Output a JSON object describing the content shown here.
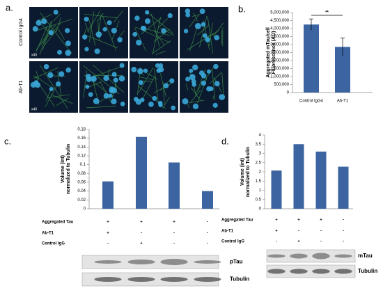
{
  "panels": [
    "a.",
    "b.",
    "c.",
    "d."
  ],
  "microscopy": {
    "rows": [
      "Control IgG4",
      "Ab-T1"
    ],
    "magnification": "x40"
  },
  "chart_data": [
    {
      "type": "bar",
      "categories": [
        "Control IgG4",
        "Ab-T1"
      ],
      "values": [
        4250000,
        2850000
      ],
      "errors": [
        350000,
        550000
      ],
      "color": "#3b64a0",
      "ylabel": [
        "Aggregated mTau/cell",
        "Fluorescence (AU)"
      ],
      "annotation": "**",
      "ylim": [
        0,
        5000000
      ],
      "yticks": [
        0,
        {
          "value": 500000,
          "label": "500,000"
        },
        {
          "value": 1000000,
          "label": "1,000,000"
        },
        {
          "value": 1500000,
          "label": "1,500,000"
        },
        {
          "value": 2000000,
          "label": "2,000,000"
        },
        {
          "value": 2500000,
          "label": "2,500,000"
        },
        {
          "value": 3000000,
          "label": "3,000,000"
        },
        {
          "value": 3500000,
          "label": "3,500,000"
        },
        {
          "value": 4000000,
          "label": "4,000,000"
        },
        {
          "value": 4500000,
          "label": "4,500,000"
        },
        {
          "value": 5000000,
          "label": "5,000,000"
        }
      ]
    },
    {
      "type": "bar",
      "values": [
        0.062,
        0.163,
        0.105,
        0.04
      ],
      "color": "#3b64a0",
      "ylabel": [
        "Volume (int)",
        "normalized to Tubulin"
      ],
      "ylim": [
        0,
        0.18
      ],
      "yticks": [
        0,
        0.02,
        0.04,
        0.06,
        0.08,
        0.1,
        0.12,
        0.14,
        0.16,
        0.18
      ]
    },
    {
      "type": "bar",
      "values": [
        2.07,
        3.5,
        3.1,
        2.28
      ],
      "color": "#3b64a0",
      "ylabel": [
        "Volume (int)",
        "normalized to Tubulin"
      ],
      "ylim": [
        0,
        4
      ],
      "yticks": [
        0,
        0.5,
        1,
        1.5,
        2,
        2.5,
        3,
        3.5,
        4
      ]
    }
  ],
  "conditions": [
    {
      "rows": [
        {
          "label": "Aggregated Tau",
          "cells": [
            "+",
            "+",
            "+",
            "-"
          ]
        },
        {
          "label": "Ab-T1",
          "cells": [
            "+",
            "-",
            "-",
            "-"
          ]
        },
        {
          "label": "Control IgG",
          "cells": [
            "-",
            "+",
            "-",
            "-"
          ]
        }
      ],
      "blots": [
        "pTau",
        "Tubulin"
      ]
    },
    {
      "rows": [
        {
          "label": "Aggregated Tau",
          "cells": [
            "+",
            "+",
            "+",
            "-"
          ]
        },
        {
          "label": "Ab-T1",
          "cells": [
            "+",
            "-",
            "-",
            "-"
          ]
        },
        {
          "label": "Control IgG",
          "cells": [
            "-",
            "+",
            "-",
            "-"
          ]
        }
      ],
      "blots": [
        "mTau",
        "Tubulin"
      ]
    }
  ]
}
